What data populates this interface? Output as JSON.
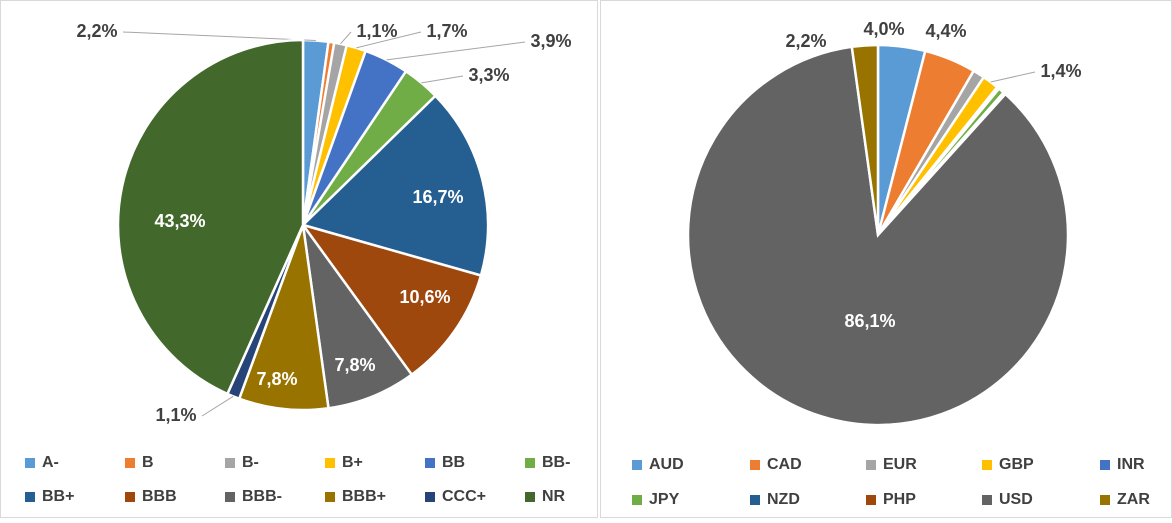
{
  "chart_data": [
    {
      "type": "pie",
      "categories": [
        "A-",
        "B",
        "B-",
        "B+",
        "BB",
        "BB-",
        "BB+",
        "BBB",
        "BBB-",
        "BBB+",
        "CCC+",
        "NR"
      ],
      "values": [
        2.2,
        0.5,
        1.1,
        1.7,
        3.9,
        3.3,
        16.7,
        10.6,
        7.8,
        7.8,
        1.1,
        43.3
      ],
      "value_labels": [
        "2,2%",
        null,
        "1,1%",
        "1,7%",
        "3,9%",
        "3,3%",
        "16,7%",
        "10,6%",
        "7,8%",
        "7,8%",
        "1,1%",
        "43,3%"
      ],
      "colors": [
        "#5b9bd5",
        "#ed7d31",
        "#a5a5a5",
        "#ffc000",
        "#4472c4",
        "#70ad47",
        "#255e91",
        "#9e480e",
        "#636363",
        "#997300",
        "#264478",
        "#43682b"
      ]
    },
    {
      "type": "pie",
      "categories": [
        "AUD",
        "CAD",
        "EUR",
        "GBP",
        "INR",
        "JPY",
        "NZD",
        "PHP",
        "USD",
        "ZAR"
      ],
      "values": [
        4.0,
        4.4,
        1.0,
        1.4,
        0.2,
        0.5,
        0.1,
        0.1,
        86.1,
        2.2
      ],
      "value_labels": [
        "4,0%",
        "4,4%",
        null,
        "1,4%",
        null,
        null,
        null,
        null,
        "86,1%",
        "2,2%"
      ],
      "colors": [
        "#5b9bd5",
        "#ed7d31",
        "#a5a5a5",
        "#ffc000",
        "#4472c4",
        "#70ad47",
        "#255e91",
        "#9e480e",
        "#636363",
        "#997300"
      ]
    }
  ]
}
